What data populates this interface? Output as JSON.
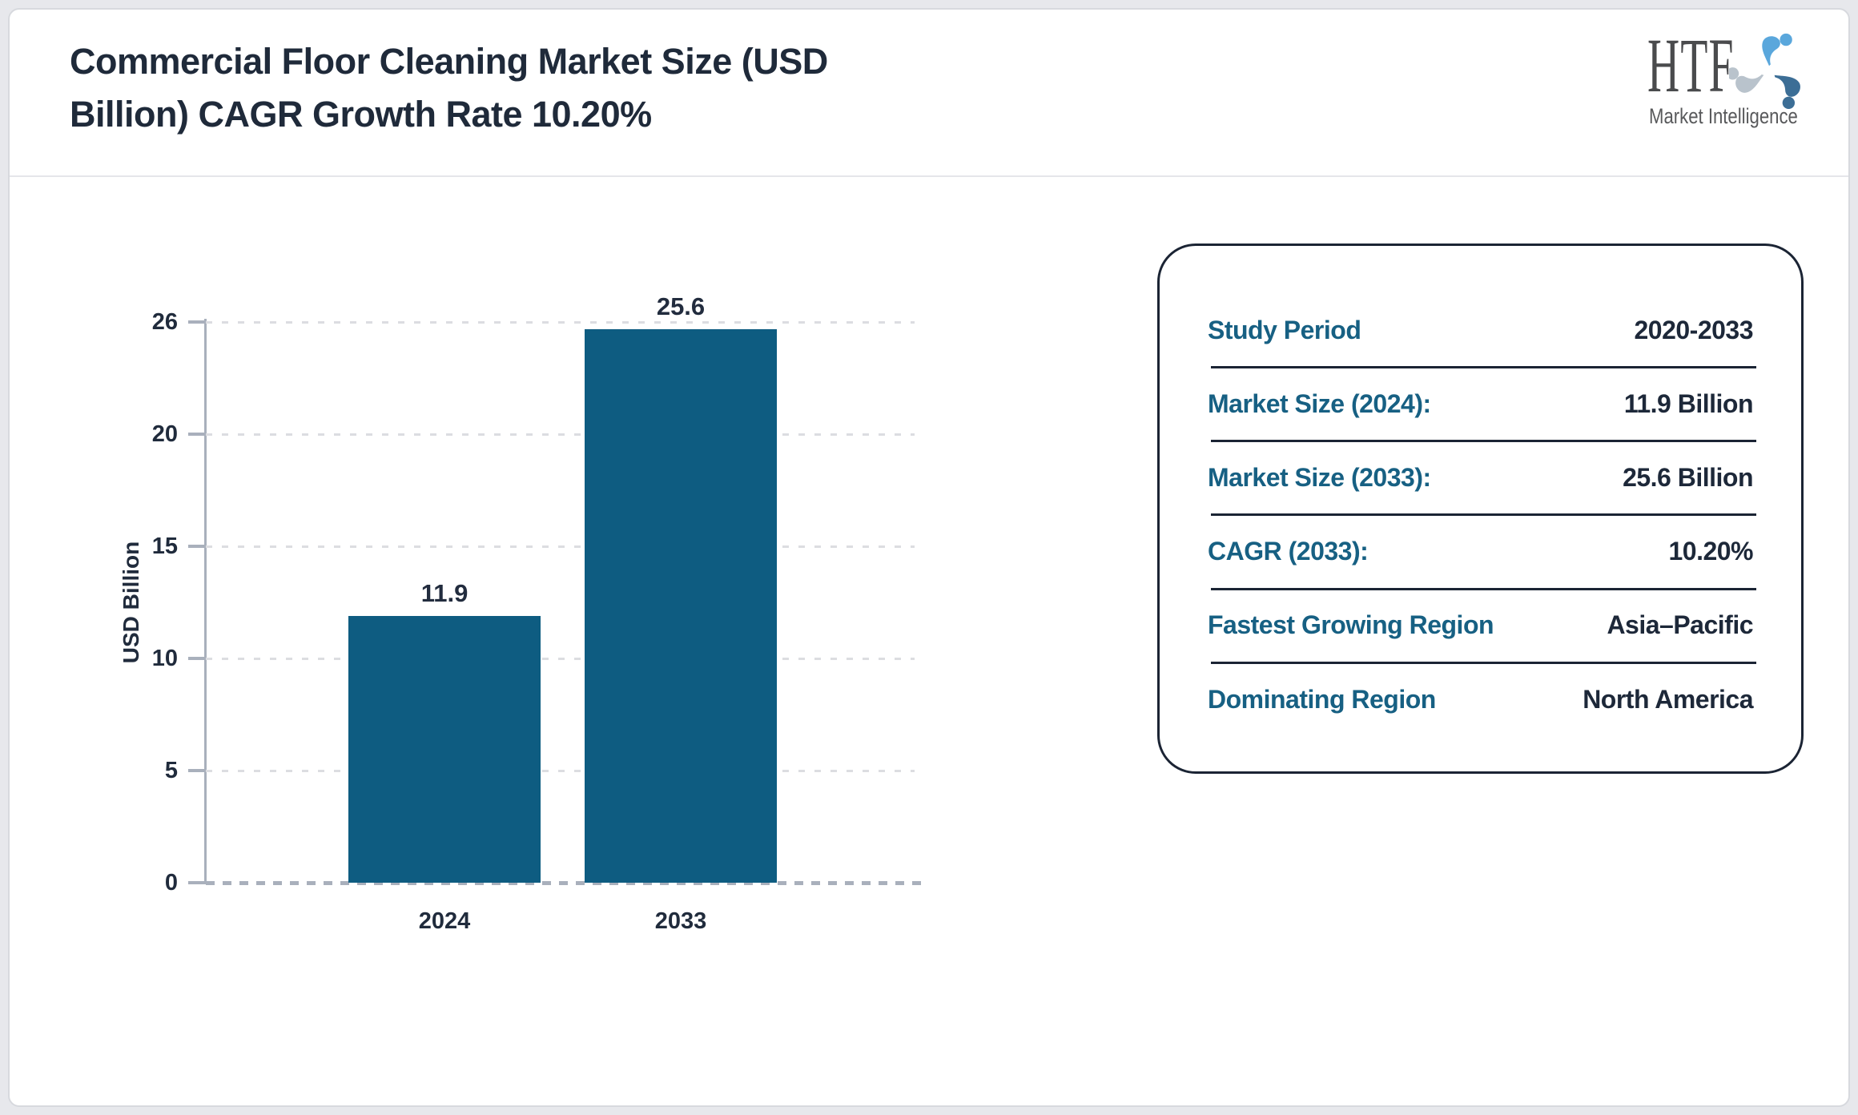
{
  "header": {
    "title_line1": "Commercial Floor Cleaning Market Size (USD",
    "title_line2": "Billion) CAGR Growth Rate 10.20%",
    "logo": {
      "name": "HTF",
      "subtitle": "Market Intelligence"
    }
  },
  "chart_data": {
    "type": "bar",
    "title": "Commercial Floor Cleaning Market Size (USD Billion) CAGR Growth Rate 10.20%",
    "categories": [
      "2024",
      "2033"
    ],
    "values": [
      11.9,
      25.6
    ],
    "data_labels": [
      "11.9",
      "25.6"
    ],
    "xlabel": "",
    "ylabel": "USD Billion",
    "yticks": [
      0,
      5,
      10,
      15,
      20,
      26
    ],
    "ylim": [
      0,
      26
    ],
    "grid": "horizontal-dashed",
    "legend": "none",
    "bar_color": "#0e5c81"
  },
  "panel": {
    "rows": [
      {
        "label": "Study Period",
        "value": "2020-2033"
      },
      {
        "label": "Market Size (2024):",
        "value": "11.9 Billion"
      },
      {
        "label": "Market Size (2033):",
        "value": "25.6 Billion"
      },
      {
        "label": "CAGR (2033):",
        "value": "10.20%"
      },
      {
        "label": "Fastest Growing Region",
        "value": "Asia–Pacific"
      },
      {
        "label": "Dominating Region",
        "value": "North America"
      }
    ]
  },
  "colors": {
    "bar": "#0e5c81",
    "panel_label_teal": "#176083",
    "value_navy": "#1d2839",
    "title_navy": "#1f2a3a",
    "axis_gray": "#a9b0bc",
    "logo_light_blue": "#5aa7dc",
    "logo_dark_blue": "#3c6e96",
    "logo_gray": "#b9c3cc"
  }
}
